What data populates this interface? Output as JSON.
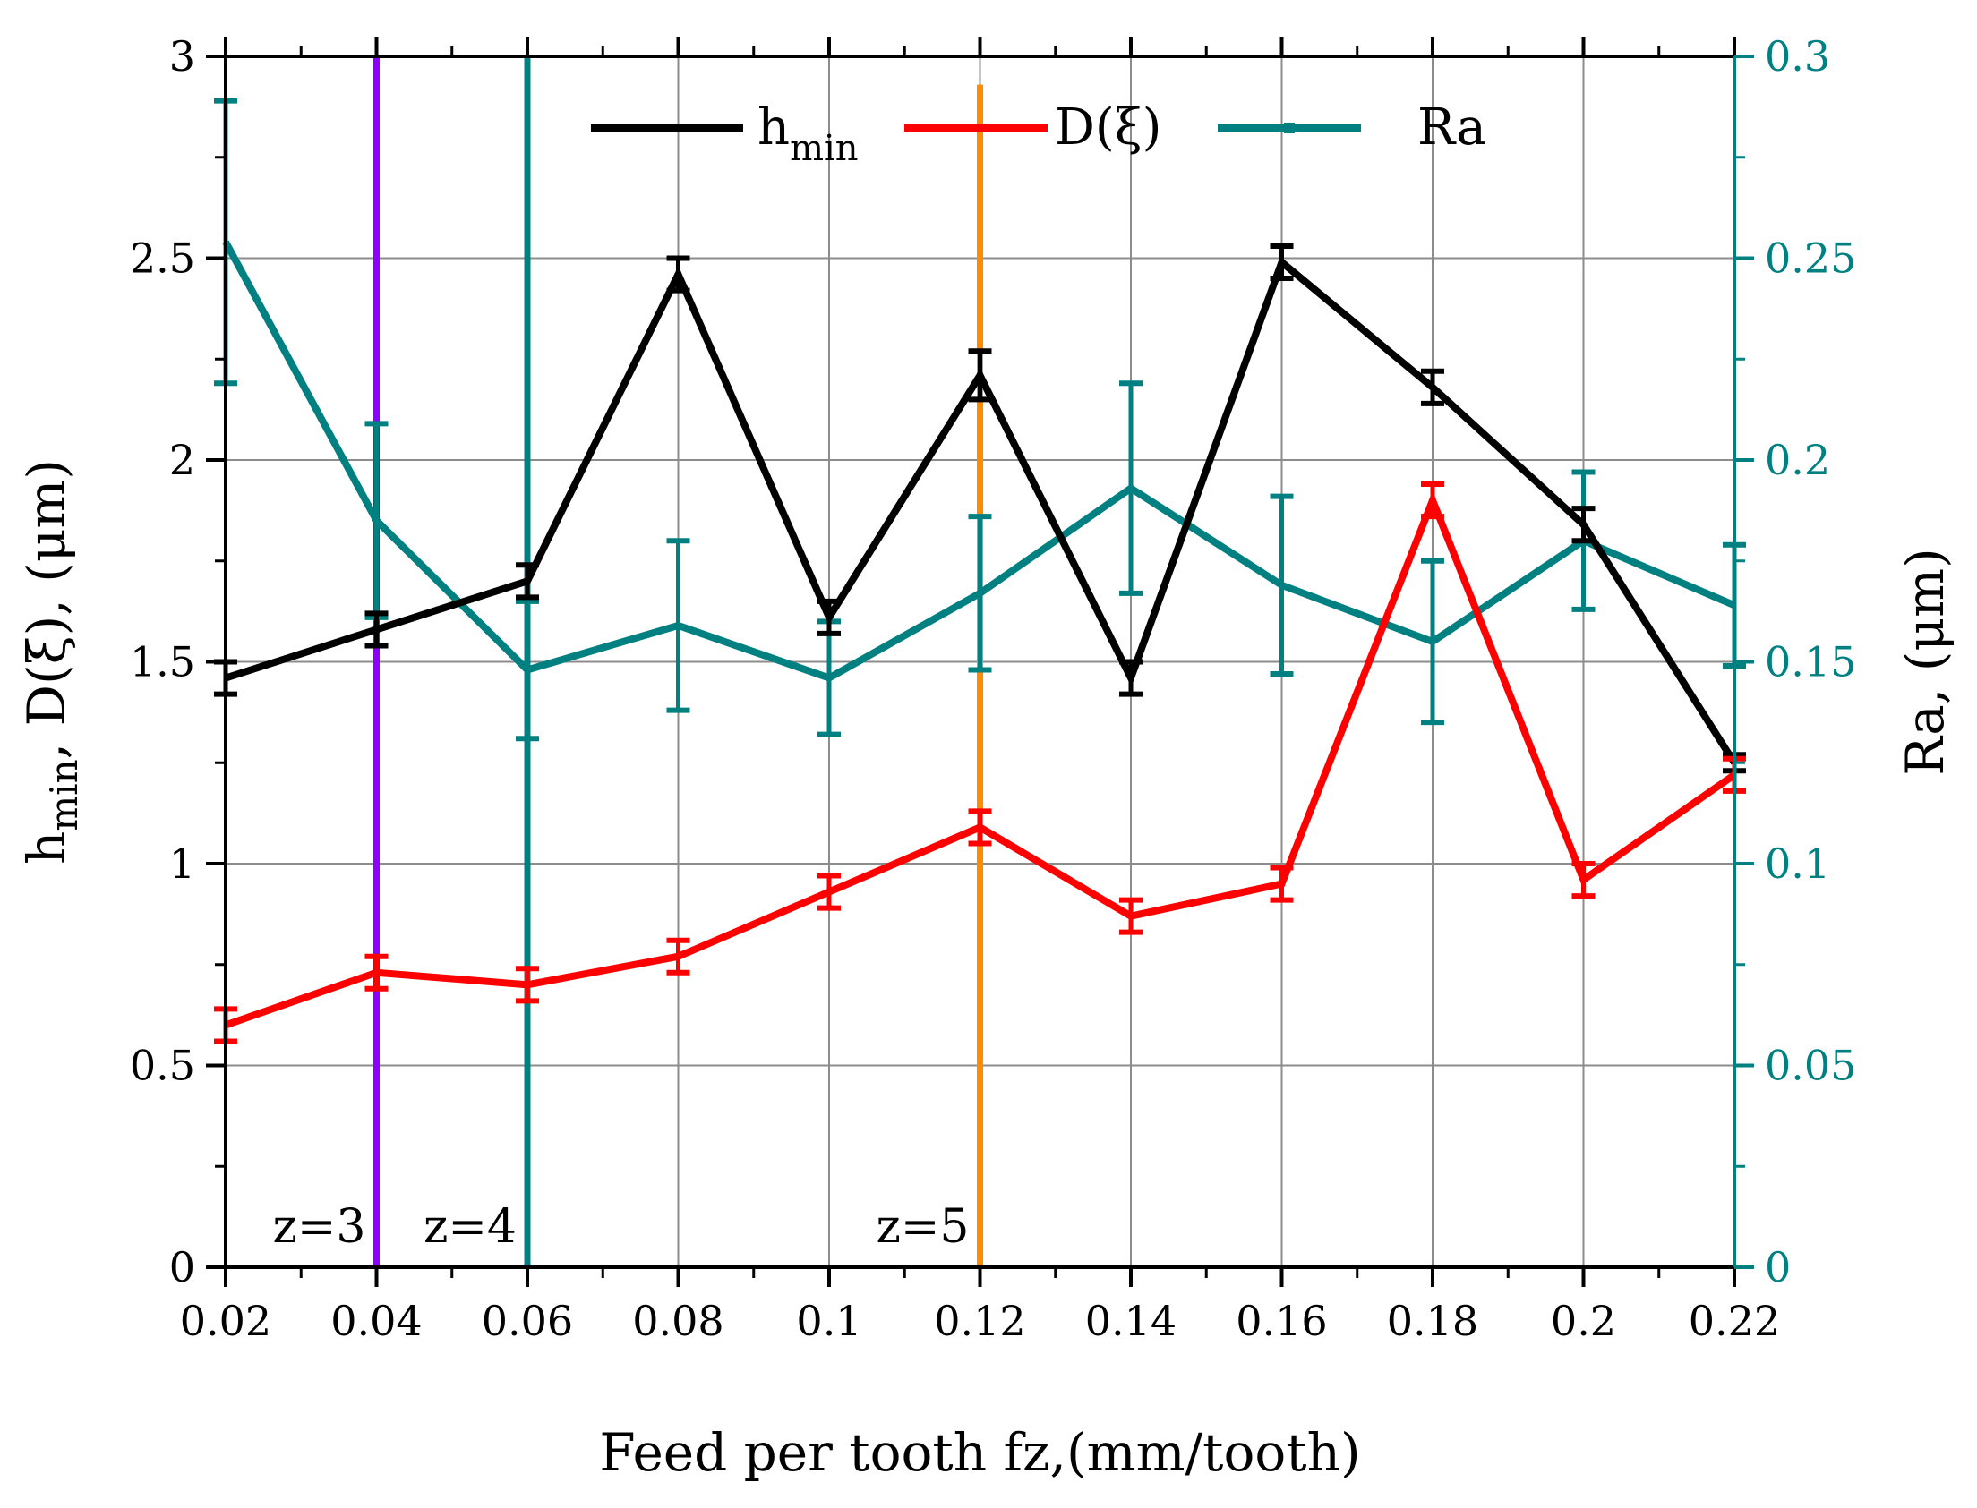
{
  "chart_data": {
    "type": "line",
    "xlabel": "Feed per tooth fz,(mm/tooth)",
    "ylabel": {
      "main": "h",
      "sub": "min",
      "rest": ", D(ξ), (μm)"
    },
    "y2label": "Ra, (μm)",
    "xlim": [
      0.02,
      0.22
    ],
    "ylim": [
      0,
      3
    ],
    "y2lim": [
      0,
      0.3
    ],
    "grid": true,
    "legend_position": "top",
    "x": [
      0.02,
      0.04,
      0.06,
      0.08,
      0.1,
      0.12,
      0.14,
      0.16,
      0.18,
      0.2,
      0.22
    ],
    "x_tick_labels": [
      "0.02",
      "0.04",
      "0.06",
      "0.08",
      "0.1",
      "0.12",
      "0.14",
      "0.16",
      "0.18",
      "0.2",
      "0.22"
    ],
    "y_tick_labels": [
      "0",
      "0.5",
      "1",
      "1.5",
      "2",
      "2.5",
      "3"
    ],
    "y2_tick_labels": [
      "0",
      "0.05",
      "0.1",
      "0.15",
      "0.2",
      "0.25",
      "0.3"
    ],
    "series": [
      {
        "name": "h",
        "name_sub": "min",
        "axis": "left",
        "color": "#000000",
        "values": [
          1.46,
          1.58,
          1.7,
          2.46,
          1.61,
          2.21,
          1.46,
          2.49,
          2.18,
          1.84,
          1.25
        ],
        "errors": [
          0.04,
          0.04,
          0.04,
          0.04,
          0.04,
          0.06,
          0.04,
          0.04,
          0.04,
          0.04,
          0.02
        ]
      },
      {
        "name": "D(ξ)",
        "axis": "left",
        "color": "#ff0000",
        "values": [
          0.6,
          0.73,
          0.7,
          0.77,
          0.93,
          1.09,
          0.87,
          0.95,
          1.9,
          0.96,
          1.22
        ],
        "errors": [
          0.04,
          0.04,
          0.04,
          0.04,
          0.04,
          0.04,
          0.04,
          0.04,
          0.04,
          0.04,
          0.04
        ]
      },
      {
        "name": "Ra",
        "axis": "right",
        "color": "#008080",
        "values": [
          0.254,
          0.185,
          0.148,
          0.159,
          0.146,
          0.167,
          0.193,
          0.169,
          0.155,
          0.18,
          0.164
        ],
        "errors": [
          0.035,
          0.024,
          0.017,
          0.021,
          0.014,
          0.019,
          0.026,
          0.022,
          0.02,
          0.017,
          0.015
        ]
      }
    ],
    "vertical_lines": [
      {
        "x": 0.04,
        "label": "z=3",
        "color": "#8b00ff",
        "top_value": 3.0
      },
      {
        "x": 0.06,
        "label": "z=4",
        "color": "#008080",
        "top_value": 3.0
      },
      {
        "x": 0.12,
        "label": "z=5",
        "color": "#ff8c00",
        "top_value": 2.93
      }
    ]
  }
}
